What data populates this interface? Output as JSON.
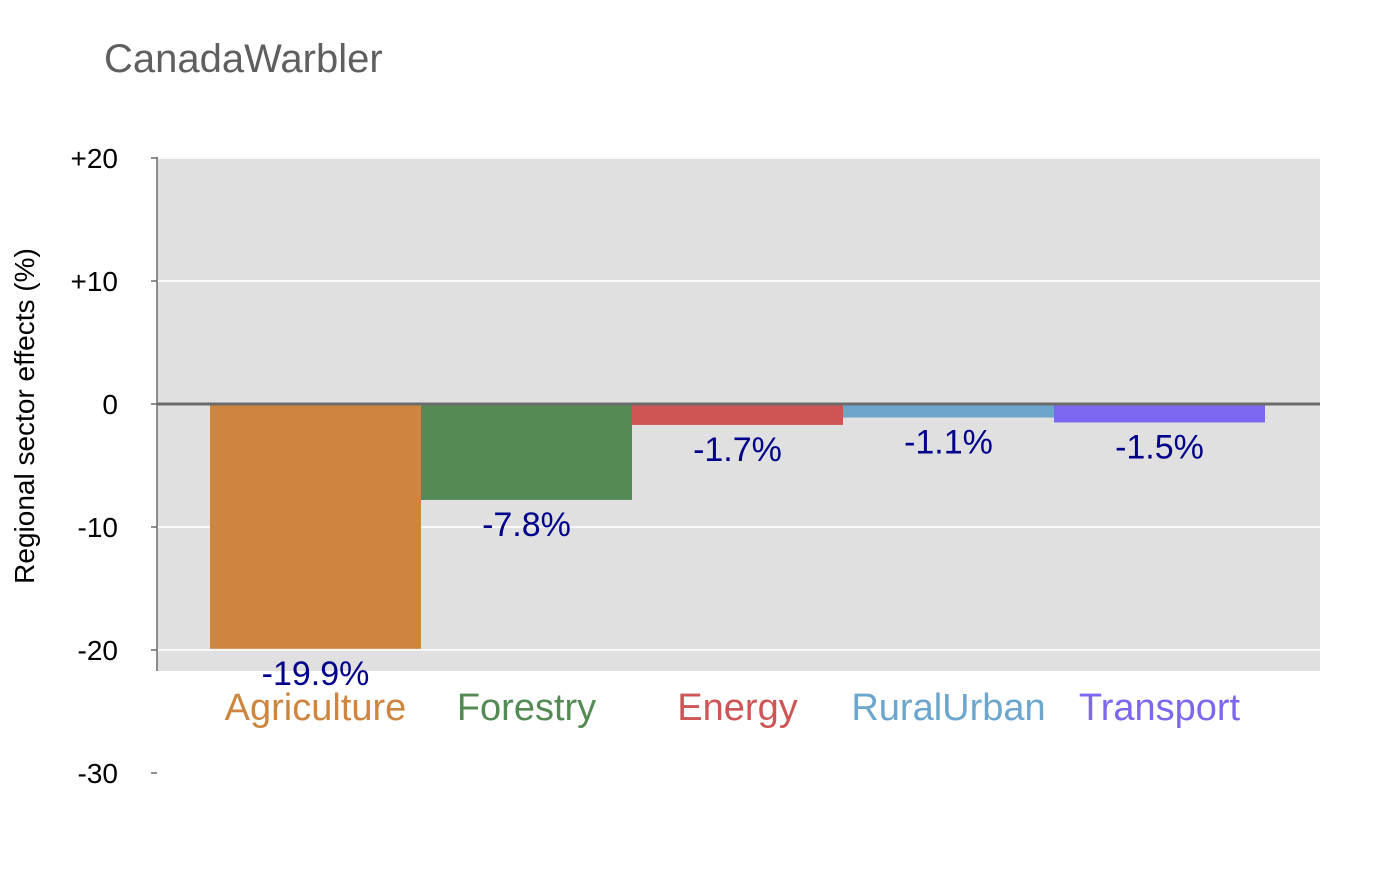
{
  "chart_data": {
    "type": "bar",
    "title": "CanadaWarbler",
    "xlabel": "",
    "ylabel": "Regional sector effects (%)",
    "ylim": [
      -21.5,
      20
    ],
    "yticks": [
      20,
      10,
      0,
      -10,
      -20,
      -30
    ],
    "ytick_labels": [
      "+20",
      "+10",
      "0",
      "-10",
      "-20",
      "-30"
    ],
    "grid": true,
    "legend": "none",
    "categories": [
      "Agriculture",
      "Forestry",
      "Energy",
      "RuralUrban",
      "Transport"
    ],
    "values": [
      -19.9,
      -7.8,
      -1.7,
      -1.1,
      -1.5
    ],
    "data_labels": [
      "-19.9%",
      "-7.8%",
      "-1.7%",
      "-1.1%",
      "-1.5%"
    ],
    "colors": [
      "#cd853f",
      "#548b54",
      "#cd5555",
      "#6ca6cd",
      "#7b68ee"
    ],
    "label_color": "#00008b",
    "panel_color": "#e0e0e0"
  }
}
